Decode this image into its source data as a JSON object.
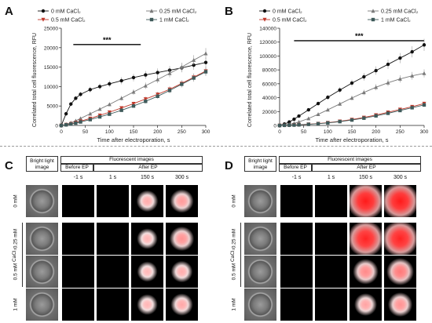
{
  "panels": {
    "A": "A",
    "B": "B",
    "C": "C",
    "D": "D"
  },
  "chart_data": [
    {
      "type": "line",
      "panel": "A",
      "xlabel": "Time after electroporation, s",
      "ylabel": "Correlated total cell fluorescence, RFU",
      "xlim": [
        0,
        300
      ],
      "ylim": [
        0,
        25000
      ],
      "xticks": [
        0,
        50,
        100,
        150,
        200,
        250,
        300
      ],
      "yticks": [
        0,
        5000,
        10000,
        15000,
        20000,
        25000
      ],
      "significance": {
        "label": "***",
        "x_start": 25,
        "x_end": 165,
        "y": 20800
      },
      "legend_position": "top",
      "x": [
        0,
        10,
        20,
        30,
        40,
        60,
        80,
        100,
        125,
        150,
        175,
        200,
        225,
        250,
        275,
        300
      ],
      "series": [
        {
          "name": "0 mM CaCl₂",
          "marker": "circle",
          "color": "#111111",
          "values": [
            0,
            3000,
            5500,
            7000,
            8000,
            9200,
            10000,
            10700,
            11500,
            12300,
            13000,
            13600,
            14200,
            14800,
            15500,
            16200
          ]
        },
        {
          "name": "0.25 mM CaCl₂",
          "marker": "triangle",
          "color": "#7a7a7a",
          "values": [
            0,
            300,
            700,
            1200,
            1800,
            3000,
            4200,
            5400,
            7000,
            8600,
            10200,
            11800,
            13400,
            15000,
            16800,
            18500
          ]
        },
        {
          "name": "0.5 mM CaCl₂",
          "marker": "triangle-down",
          "color": "#c0392b",
          "values": [
            0,
            200,
            450,
            750,
            1100,
            1800,
            2600,
            3400,
            4500,
            5600,
            6800,
            8000,
            9300,
            10800,
            12400,
            14000
          ]
        },
        {
          "name": "1 mM CaCl₂",
          "marker": "square",
          "color": "#3f5a5a",
          "values": [
            0,
            150,
            350,
            600,
            900,
            1500,
            2200,
            2900,
            3900,
            5000,
            6200,
            7500,
            9000,
            10600,
            12200,
            13800
          ]
        }
      ]
    },
    {
      "type": "line",
      "panel": "B",
      "xlabel": "Time after electroporation, s",
      "ylabel": "Correlated total cell fluorescence, RFU",
      "xlim": [
        0,
        300
      ],
      "ylim": [
        0,
        140000
      ],
      "xticks": [
        0,
        50,
        100,
        150,
        200,
        250,
        300
      ],
      "yticks": [
        0,
        20000,
        40000,
        60000,
        80000,
        100000,
        120000,
        140000
      ],
      "significance": {
        "label": "***",
        "x_start": 30,
        "x_end": 300,
        "y": 122000
      },
      "legend_position": "top",
      "x": [
        0,
        10,
        20,
        30,
        40,
        60,
        80,
        100,
        125,
        150,
        175,
        200,
        225,
        250,
        275,
        300
      ],
      "series": [
        {
          "name": "0 mM CaCl₂",
          "marker": "circle",
          "color": "#111111",
          "values": [
            0,
            2000,
            5000,
            9000,
            13500,
            22500,
            31500,
            40500,
            51000,
            61000,
            70000,
            79000,
            88000,
            97000,
            106000,
            116000
          ]
        },
        {
          "name": "0.25 mM CaCl₂",
          "marker": "triangle",
          "color": "#7a7a7a",
          "values": [
            0,
            500,
            1500,
            3000,
            5000,
            10000,
            16000,
            22500,
            31000,
            39500,
            47500,
            55000,
            61500,
            67000,
            71500,
            75000
          ]
        },
        {
          "name": "0.5 mM CaCl₂",
          "marker": "triangle-down",
          "color": "#c0392b",
          "values": [
            0,
            200,
            400,
            700,
            1000,
            1800,
            2800,
            4000,
            6000,
            8500,
            11500,
            15000,
            19000,
            23000,
            27000,
            31500
          ]
        },
        {
          "name": "1 mM CaCl₂",
          "marker": "square",
          "color": "#3f5a5a",
          "values": [
            0,
            150,
            300,
            550,
            850,
            1600,
            2500,
            3600,
            5500,
            7800,
            10500,
            13800,
            17500,
            21500,
            25500,
            29500
          ]
        }
      ]
    }
  ],
  "image_grid": {
    "headers": {
      "bright": "Bright light image",
      "fluor": "Fluorescent images",
      "before": "Before EP",
      "after": "After EP"
    },
    "time_labels": [
      "-1 s",
      "1 s",
      "150 s",
      "300 s"
    ],
    "row_labels": [
      "0 mM",
      "0.25 mM",
      "0.5 mM",
      "1 mM"
    ],
    "group_label": "CaCl₂",
    "panels": [
      {
        "id": "C",
        "red_intensity": [
          [
            0,
            0,
            0.15,
            0.25
          ],
          [
            0,
            0,
            0.1,
            0.3
          ],
          [
            0,
            0,
            0.08,
            0.15
          ],
          [
            0,
            0,
            0.1,
            0.18
          ]
        ]
      },
      {
        "id": "D",
        "red_intensity": [
          [
            0,
            0,
            1.0,
            1.0
          ],
          [
            0,
            0,
            0.95,
            0.95
          ],
          [
            0,
            0,
            0.35,
            0.45
          ],
          [
            0,
            0,
            0.2,
            0.3
          ]
        ]
      }
    ]
  },
  "colors": {
    "fluor_red": "#ff1a1a"
  }
}
